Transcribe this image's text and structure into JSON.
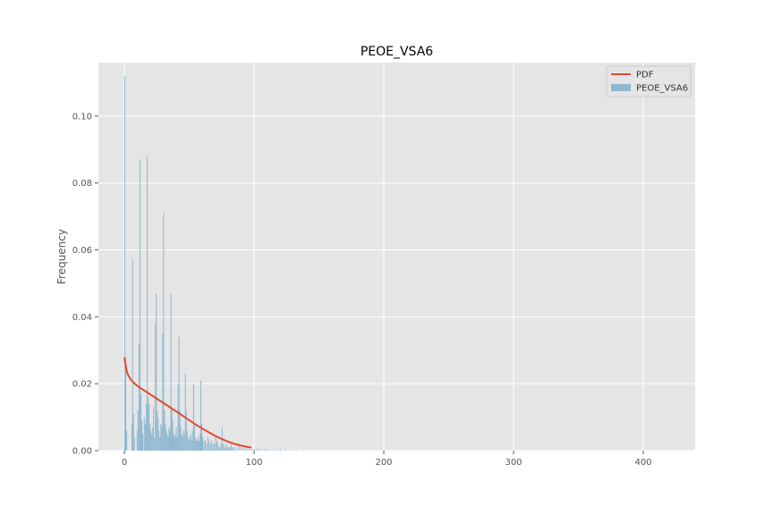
{
  "chart_data": {
    "type": "bar",
    "title": "PEOE_VSA6",
    "xlabel": "",
    "ylabel": "Frequency",
    "xlim": [
      -20,
      440
    ],
    "ylim": [
      0,
      0.116
    ],
    "xticks": [
      0,
      100,
      200,
      300,
      400
    ],
    "yticks": [
      0.0,
      0.02,
      0.04,
      0.06,
      0.08,
      0.1
    ],
    "grid": true,
    "legend_position": "top-right",
    "colors": {
      "background": "#e5e5e5",
      "grid": "#ffffff",
      "histogram": "#8fb8d0",
      "pdf": "#e24a33"
    },
    "series": [
      {
        "name": "PEOE_VSA6",
        "kind": "histogram",
        "bin_width": 0.7,
        "bins": [
          [
            0,
            0.112
          ],
          [
            0.7,
            0.028
          ],
          [
            1.4,
            0.006
          ],
          [
            5.5,
            0.008
          ],
          [
            6.0,
            0.057
          ],
          [
            6.7,
            0.011
          ],
          [
            7.4,
            0.004
          ],
          [
            9.5,
            0.006
          ],
          [
            10.2,
            0.012
          ],
          [
            11.0,
            0.032
          ],
          [
            11.8,
            0.087
          ],
          [
            12.4,
            0.017
          ],
          [
            13.1,
            0.009
          ],
          [
            13.8,
            0.005
          ],
          [
            15.0,
            0.01
          ],
          [
            15.8,
            0.008
          ],
          [
            16.6,
            0.014
          ],
          [
            17.3,
            0.088
          ],
          [
            18.0,
            0.016
          ],
          [
            18.7,
            0.014
          ],
          [
            19.4,
            0.008
          ],
          [
            20.1,
            0.006
          ],
          [
            20.8,
            0.005
          ],
          [
            21.5,
            0.007
          ],
          [
            22.2,
            0.013
          ],
          [
            22.9,
            0.004
          ],
          [
            23.6,
            0.038
          ],
          [
            24.3,
            0.047
          ],
          [
            25.0,
            0.012
          ],
          [
            25.7,
            0.01
          ],
          [
            26.4,
            0.006
          ],
          [
            27.1,
            0.004
          ],
          [
            27.8,
            0.008
          ],
          [
            28.5,
            0.007
          ],
          [
            29.2,
            0.035
          ],
          [
            29.9,
            0.071
          ],
          [
            30.6,
            0.012
          ],
          [
            31.3,
            0.008
          ],
          [
            32.0,
            0.006
          ],
          [
            32.7,
            0.005
          ],
          [
            33.4,
            0.004
          ],
          [
            34.1,
            0.007
          ],
          [
            34.8,
            0.006
          ],
          [
            35.5,
            0.047
          ],
          [
            36.2,
            0.013
          ],
          [
            36.9,
            0.009
          ],
          [
            37.6,
            0.005
          ],
          [
            38.3,
            0.004
          ],
          [
            39.0,
            0.005
          ],
          [
            39.7,
            0.007
          ],
          [
            40.4,
            0.004
          ],
          [
            41.1,
            0.02
          ],
          [
            41.8,
            0.034
          ],
          [
            42.5,
            0.012
          ],
          [
            43.2,
            0.007
          ],
          [
            43.9,
            0.005
          ],
          [
            44.6,
            0.004
          ],
          [
            45.3,
            0.006
          ],
          [
            46.0,
            0.005
          ],
          [
            46.7,
            0.023
          ],
          [
            47.4,
            0.012
          ],
          [
            48.1,
            0.006
          ],
          [
            48.8,
            0.004
          ],
          [
            49.5,
            0.003
          ],
          [
            50.2,
            0.004
          ],
          [
            50.9,
            0.005
          ],
          [
            51.6,
            0.003
          ],
          [
            52.3,
            0.006
          ],
          [
            53.0,
            0.02
          ],
          [
            53.7,
            0.008
          ],
          [
            54.4,
            0.004
          ],
          [
            55.1,
            0.003
          ],
          [
            55.8,
            0.003
          ],
          [
            56.5,
            0.004
          ],
          [
            57.2,
            0.003
          ],
          [
            57.9,
            0.005
          ],
          [
            58.6,
            0.021
          ],
          [
            59.3,
            0.008
          ],
          [
            60.0,
            0.004
          ],
          [
            61.0,
            0.003
          ],
          [
            62.0,
            0.003
          ],
          [
            63.0,
            0.002
          ],
          [
            64.0,
            0.004
          ],
          [
            65.0,
            0.003
          ],
          [
            66.0,
            0.002
          ],
          [
            67.0,
            0.003
          ],
          [
            68.0,
            0.002
          ],
          [
            69.0,
            0.002
          ],
          [
            70.0,
            0.004
          ],
          [
            71.0,
            0.003
          ],
          [
            72.0,
            0.002
          ],
          [
            73.0,
            0.001
          ],
          [
            74.0,
            0.002
          ],
          [
            75.0,
            0.007
          ],
          [
            76.0,
            0.002
          ],
          [
            77.0,
            0.001
          ],
          [
            78.0,
            0.002
          ],
          [
            79.0,
            0.001
          ],
          [
            80.0,
            0.001
          ],
          [
            81.0,
            0.001
          ],
          [
            82.0,
            0.002
          ],
          [
            83.0,
            0.001
          ],
          [
            84.0,
            0.001
          ],
          [
            86.0,
            0.001
          ],
          [
            88.0,
            0.002
          ],
          [
            90.0,
            0.001
          ],
          [
            92.0,
            0.0008
          ],
          [
            94.0,
            0.0006
          ],
          [
            96.0,
            0.0005
          ],
          [
            98.0,
            0.0005
          ],
          [
            100.0,
            0.0004
          ],
          [
            102.0,
            0.0006
          ],
          [
            104.0,
            0.0004
          ],
          [
            106.0,
            0.0003
          ],
          [
            108.0,
            0.0005
          ],
          [
            110.0,
            0.0003
          ],
          [
            112.0,
            0.0002
          ],
          [
            114.0,
            0.0003
          ],
          [
            116.0,
            0.0002
          ],
          [
            118.0,
            0.0002
          ],
          [
            120.0,
            0.0003
          ],
          [
            124.0,
            0.0002
          ],
          [
            128.0,
            0.0002
          ],
          [
            132.0,
            0.0001
          ],
          [
            138.0,
            0.0002
          ]
        ]
      },
      {
        "name": "PDF",
        "kind": "line",
        "x": [
          0,
          1,
          2,
          3,
          5,
          8,
          12,
          16,
          20,
          25,
          30,
          35,
          40,
          45,
          50,
          55,
          60,
          65,
          70,
          75,
          80,
          85,
          90,
          95,
          98
        ],
        "y": [
          0.0278,
          0.0255,
          0.0235,
          0.0225,
          0.0212,
          0.02,
          0.0188,
          0.0178,
          0.0168,
          0.0155,
          0.0143,
          0.013,
          0.0117,
          0.0104,
          0.0091,
          0.0078,
          0.0066,
          0.0055,
          0.0044,
          0.0035,
          0.0027,
          0.002,
          0.0015,
          0.0011,
          0.0009
        ]
      }
    ],
    "legend": [
      "PDF",
      "PEOE_VSA6"
    ]
  }
}
